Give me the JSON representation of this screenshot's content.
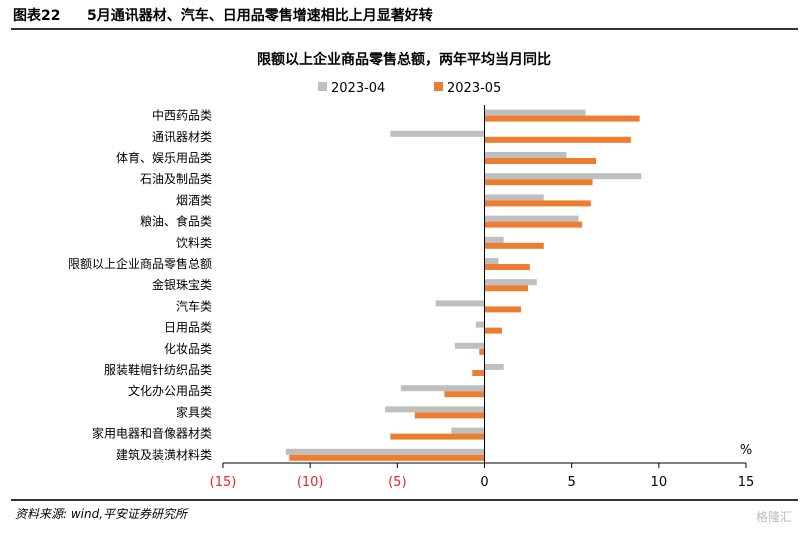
{
  "header": {
    "figure_no": "图表22",
    "figure_title": "5月通讯器材、汽车、日用品零售增速相比上月显著好转"
  },
  "chart_data": {
    "type": "bar",
    "orientation": "horizontal",
    "title": "限额以上企业商品零售总额，两年平均当月同比",
    "unit_label": "%",
    "categories": [
      "中西药品类",
      "通讯器材类",
      "体育、娱乐用品类",
      "石油及制品类",
      "烟酒类",
      "粮油、食品类",
      "饮料类",
      "限额以上企业商品零售总额",
      "金银珠宝类",
      "汽车类",
      "日用品类",
      "化妆品类",
      "服装鞋帽针纺织品类",
      "文化办公用品类",
      "家具类",
      "家用电器和音像器材类",
      "建筑及装潢材料类"
    ],
    "series": [
      {
        "name": "2023-04",
        "color": "#bfbfbf",
        "values": [
          5.8,
          -5.4,
          4.7,
          9.0,
          3.4,
          5.4,
          1.1,
          0.8,
          3.0,
          -2.8,
          -0.5,
          -1.7,
          1.1,
          -4.8,
          -5.7,
          -1.9,
          -11.4
        ]
      },
      {
        "name": "2023-05",
        "color": "#ed7d31",
        "values": [
          8.9,
          8.4,
          6.4,
          6.2,
          6.1,
          5.6,
          3.4,
          2.6,
          2.5,
          2.1,
          1.0,
          -0.3,
          -0.7,
          -2.3,
          -4.0,
          -5.4,
          -11.2
        ]
      }
    ],
    "xlim": [
      -15,
      15
    ],
    "xticks": [
      -15,
      -10,
      -5,
      0,
      5,
      10,
      15
    ],
    "xtick_labels": [
      "(15)",
      "(10)",
      "(5)",
      "0",
      "5",
      "10",
      "15"
    ],
    "negative_label_color": "#e8262a",
    "legend_position": "top",
    "grid": false
  },
  "footer": {
    "source": "资料来源: wind,平安证券研究所",
    "watermark": "格隆汇"
  }
}
